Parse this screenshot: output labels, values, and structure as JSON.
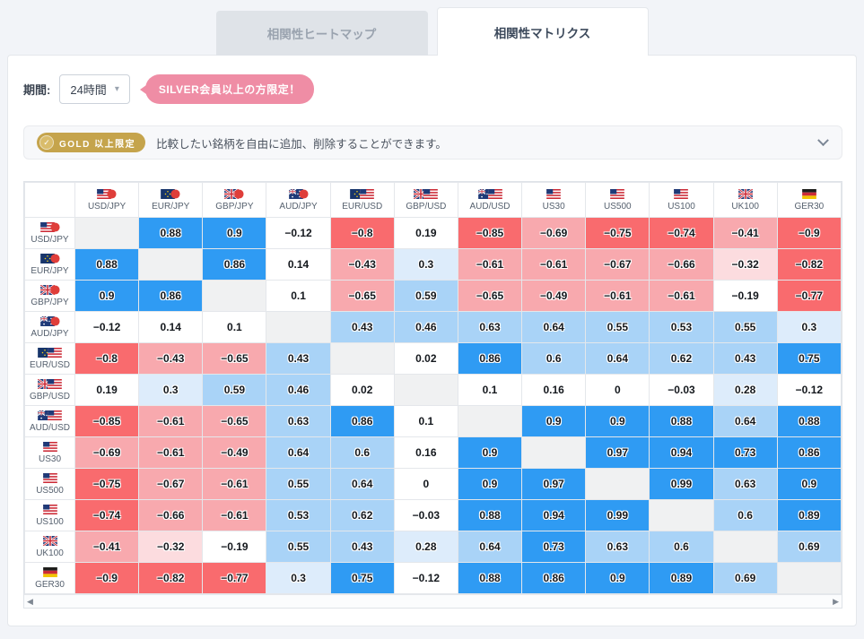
{
  "tabs": [
    {
      "label": "相関性ヒートマップ",
      "active": false
    },
    {
      "label": "相関性マトリクス",
      "active": true
    }
  ],
  "period": {
    "label": "期間:",
    "value": "24時間"
  },
  "silver_badge": {
    "text": "SILVER会員以上の方限定！"
  },
  "gold_banner": {
    "badge": "GOLD 以上限定",
    "text": "比較したい銘柄を自由に追加、削除することができます。"
  },
  "icons": {
    "dropdown_arrow": "▾",
    "scroll_left": "◀",
    "scroll_right": "▶",
    "medal_check": "✓"
  },
  "colors": {
    "accent_pink": "#ef8da5",
    "gold": "#c5a44c",
    "diagonal": "#f0f1f2",
    "scale": [
      {
        "min": 0.7,
        "pos": "#2f9bf3",
        "neg": "#f96b6e"
      },
      {
        "min": 0.4,
        "pos": "#a9d3f7",
        "neg": "#f8a9ae"
      },
      {
        "min": 0.2,
        "pos": "#ddecfb",
        "neg": "#fcdcdf"
      },
      {
        "min": 0.0,
        "pos": "#ffffff",
        "neg": "#ffffff"
      }
    ]
  },
  "chart_data": {
    "type": "heatmap",
    "title": "相関性マトリクス",
    "period": "24時間",
    "value_range": [
      -1,
      1
    ],
    "symbols": [
      "USD/JPY",
      "EUR/JPY",
      "GBP/JPY",
      "AUD/JPY",
      "EUR/USD",
      "GBP/USD",
      "AUD/USD",
      "US30",
      "US500",
      "US100",
      "UK100",
      "GER30"
    ],
    "flags": [
      [
        "us",
        "jp"
      ],
      [
        "eu",
        "jp"
      ],
      [
        "gb",
        "jp"
      ],
      [
        "au",
        "jp"
      ],
      [
        "eu",
        "us"
      ],
      [
        "gb",
        "us"
      ],
      [
        "au",
        "us"
      ],
      [
        "us"
      ],
      [
        "us"
      ],
      [
        "us"
      ],
      [
        "gb"
      ],
      [
        "de"
      ]
    ],
    "matrix": [
      [
        null,
        0.88,
        0.9,
        -0.12,
        -0.8,
        0.19,
        -0.85,
        -0.69,
        -0.75,
        -0.74,
        -0.41,
        -0.9
      ],
      [
        0.88,
        null,
        0.86,
        0.14,
        -0.43,
        0.3,
        -0.61,
        -0.61,
        -0.67,
        -0.66,
        -0.32,
        -0.82
      ],
      [
        0.9,
        0.86,
        null,
        0.1,
        -0.65,
        0.59,
        -0.65,
        -0.49,
        -0.61,
        -0.61,
        -0.19,
        -0.77
      ],
      [
        -0.12,
        0.14,
        0.1,
        null,
        0.43,
        0.46,
        0.63,
        0.64,
        0.55,
        0.53,
        0.55,
        0.3
      ],
      [
        -0.8,
        -0.43,
        -0.65,
        0.43,
        null,
        0.02,
        0.86,
        0.6,
        0.64,
        0.62,
        0.43,
        0.75
      ],
      [
        0.19,
        0.3,
        0.59,
        0.46,
        0.02,
        null,
        0.1,
        0.16,
        0,
        -0.03,
        0.28,
        -0.12
      ],
      [
        -0.85,
        -0.61,
        -0.65,
        0.63,
        0.86,
        0.1,
        null,
        0.9,
        0.9,
        0.88,
        0.64,
        0.88
      ],
      [
        -0.69,
        -0.61,
        -0.49,
        0.64,
        0.6,
        0.16,
        0.9,
        null,
        0.97,
        0.94,
        0.73,
        0.86
      ],
      [
        -0.75,
        -0.67,
        -0.61,
        0.55,
        0.64,
        0,
        0.9,
        0.97,
        null,
        0.99,
        0.63,
        0.9
      ],
      [
        -0.74,
        -0.66,
        -0.61,
        0.53,
        0.62,
        -0.03,
        0.88,
        0.94,
        0.99,
        null,
        0.6,
        0.89
      ],
      [
        -0.41,
        -0.32,
        -0.19,
        0.55,
        0.43,
        0.28,
        0.64,
        0.73,
        0.63,
        0.6,
        null,
        0.69
      ],
      [
        -0.9,
        -0.82,
        -0.77,
        0.3,
        0.75,
        -0.12,
        0.88,
        0.86,
        0.9,
        0.89,
        0.69,
        null
      ]
    ]
  }
}
